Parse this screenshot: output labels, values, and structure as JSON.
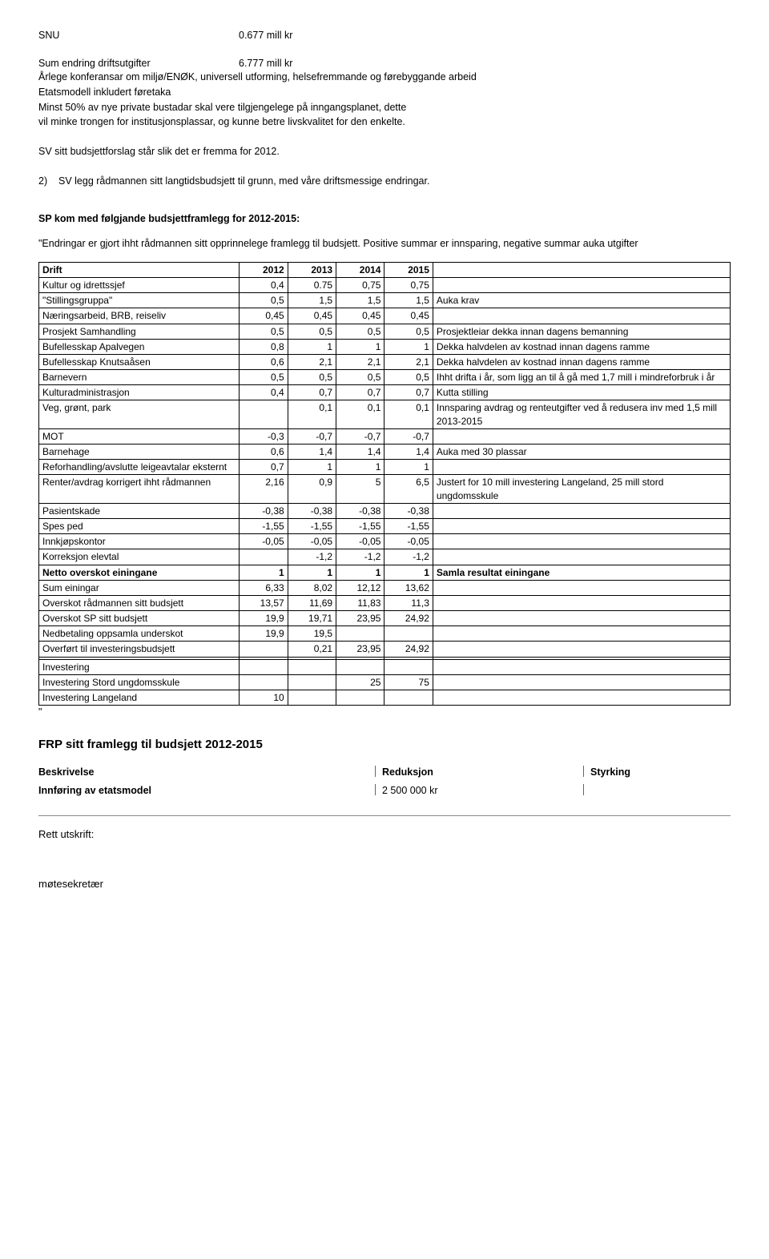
{
  "top": {
    "snu_label": "SNU",
    "snu_value": "0.677 mill kr",
    "sum_label": "Sum endring driftsutgifter",
    "sum_value": "6.777 mill kr",
    "bullets": [
      "Årlege konferansar om miljø/ENØK, universell utforming, helsefremmande og førebyggande arbeid",
      "Etatsmodell inkludert føretaka",
      "Minst 50% av nye private bustadar skal vere tilgjengelege på inngangsplanet, dette",
      "vil minke trongen for institusjonsplassar, og kunne betre livskvalitet for den enkelte."
    ],
    "sv_line": "SV sitt budsjettforslag står slik det er fremma for 2012.",
    "point2": "2)    SV legg rådmannen sitt langtidsbudsjett til grunn, med våre driftsmessige endringar."
  },
  "sp": {
    "heading": "SP kom med følgjande budsjettframlegg for 2012-2015:",
    "intro": "\"Endringar er gjort ihht rådmannen sitt opprinnelege framlegg til budsjett. Positive summar er innsparing, negative summar auka utgifter",
    "headers": [
      "Drift",
      "2012",
      "2013",
      "2014",
      "2015",
      ""
    ],
    "rows": [
      {
        "bold": false,
        "c": [
          "Kultur og idrettssjef",
          "0,4",
          "0.75",
          "0,75",
          "0,75",
          ""
        ]
      },
      {
        "bold": false,
        "c": [
          "\"Stillingsgruppa\"",
          "0,5",
          "1,5",
          "1,5",
          "1,5",
          "Auka krav"
        ]
      },
      {
        "bold": false,
        "c": [
          "Næringsarbeid, BRB, reiseliv",
          "0,45",
          "0,45",
          "0,45",
          "0,45",
          ""
        ]
      },
      {
        "bold": false,
        "c": [
          "Prosjekt Samhandling",
          "0,5",
          "0,5",
          "0,5",
          "0,5",
          "Prosjektleiar dekka innan dagens bemanning"
        ]
      },
      {
        "bold": false,
        "c": [
          "Bufellesskap Apalvegen",
          "0,8",
          "1",
          "1",
          "1",
          "Dekka halvdelen av kostnad innan dagens ramme"
        ]
      },
      {
        "bold": false,
        "c": [
          "Bufellesskap Knutsaåsen",
          "0,6",
          "2,1",
          "2,1",
          "2,1",
          "Dekka halvdelen av kostnad innan dagens ramme"
        ]
      },
      {
        "bold": false,
        "c": [
          "Barnevern",
          "0,5",
          "0,5",
          "0,5",
          "0,5",
          "Ihht drifta i år, som ligg an til å gå med 1,7 mill i mindreforbruk i år"
        ]
      },
      {
        "bold": false,
        "c": [
          "Kulturadministrasjon",
          "0,4",
          "0,7",
          "0,7",
          "0,7",
          "Kutta stilling"
        ]
      },
      {
        "bold": false,
        "c": [
          "Veg, grønt, park",
          "",
          "0,1",
          "0,1",
          "0,1",
          "Innsparing avdrag og renteutgifter ved å redusera inv med 1,5 mill 2013-2015"
        ]
      },
      {
        "bold": false,
        "c": [
          "MOT",
          "-0,3",
          "-0,7",
          "-0,7",
          "-0,7",
          ""
        ]
      },
      {
        "bold": false,
        "c": [
          "Barnehage",
          "0,6",
          "1,4",
          "1,4",
          "1,4",
          "Auka med 30 plassar"
        ]
      },
      {
        "bold": false,
        "c": [
          "Reforhandling/avslutte leigeavtalar eksternt",
          "0,7",
          "1",
          "1",
          "1",
          ""
        ]
      },
      {
        "bold": false,
        "c": [
          "Renter/avdrag korrigert ihht rådmannen",
          "2,16",
          "0,9",
          "5",
          "6,5",
          "Justert for 10 mill investering Langeland, 25 mill stord ungdomsskule"
        ]
      },
      {
        "bold": false,
        "c": [
          "Pasientskade",
          "-0,38",
          "-0,38",
          "-0,38",
          "-0,38",
          ""
        ]
      },
      {
        "bold": false,
        "c": [
          "Spes ped",
          "-1,55",
          "-1,55",
          "-1,55",
          "-1,55",
          ""
        ]
      },
      {
        "bold": false,
        "c": [
          "Innkjøpskontor",
          "-0,05",
          "-0,05",
          "-0,05",
          "-0,05",
          ""
        ]
      },
      {
        "bold": false,
        "c": [
          "Korreksjon elevtal",
          "",
          "-1,2",
          "-1,2",
          "-1,2",
          ""
        ]
      },
      {
        "bold": true,
        "c": [
          "Netto overskot einingane",
          "1",
          "1",
          "1",
          "1",
          "Samla resultat einingane"
        ]
      },
      {
        "bold": false,
        "c": [
          "Sum einingar",
          "6,33",
          "8,02",
          "12,12",
          "13,62",
          ""
        ]
      },
      {
        "bold": false,
        "c": [
          "Overskot rådmannen sitt budsjett",
          "13,57",
          "11,69",
          "11,83",
          "11,3",
          ""
        ]
      },
      {
        "bold": false,
        "c": [
          "Overskot SP sitt budsjett",
          "19,9",
          "19,71",
          "23,95",
          "24,92",
          ""
        ]
      },
      {
        "bold": false,
        "c": [
          "Nedbetaling oppsamla underskot",
          "19,9",
          "19,5",
          "",
          "",
          ""
        ]
      },
      {
        "bold": false,
        "c": [
          "Overført til investeringsbudsjett",
          "",
          "0,21",
          "23,95",
          "24,92",
          ""
        ]
      },
      {
        "bold": false,
        "c": [
          "",
          "",
          "",
          "",
          "",
          ""
        ]
      },
      {
        "bold": false,
        "c": [
          "Investering",
          "",
          "",
          "",
          "",
          ""
        ]
      },
      {
        "bold": false,
        "c": [
          "Investering Stord ungdomsskule",
          "",
          "",
          "25",
          "75",
          ""
        ]
      },
      {
        "bold": false,
        "c": [
          "Investering Langeland",
          "10",
          "",
          "",
          "",
          ""
        ]
      }
    ],
    "trailing_quote": "\""
  },
  "frp": {
    "heading": "FRP sitt framlegg til budsjett 2012-2015",
    "col1": "Beskrivelse",
    "col2": "Reduksjon",
    "col3": "Styrking",
    "row1_label": "Innføring av etatsmodel",
    "row1_value": "2 500 000 kr"
  },
  "footer": {
    "rett": "Rett utskrift:",
    "sekr": "møtesekretær"
  },
  "table_col_widths": [
    "29%",
    "7%",
    "7%",
    "7%",
    "7%",
    "43%"
  ]
}
